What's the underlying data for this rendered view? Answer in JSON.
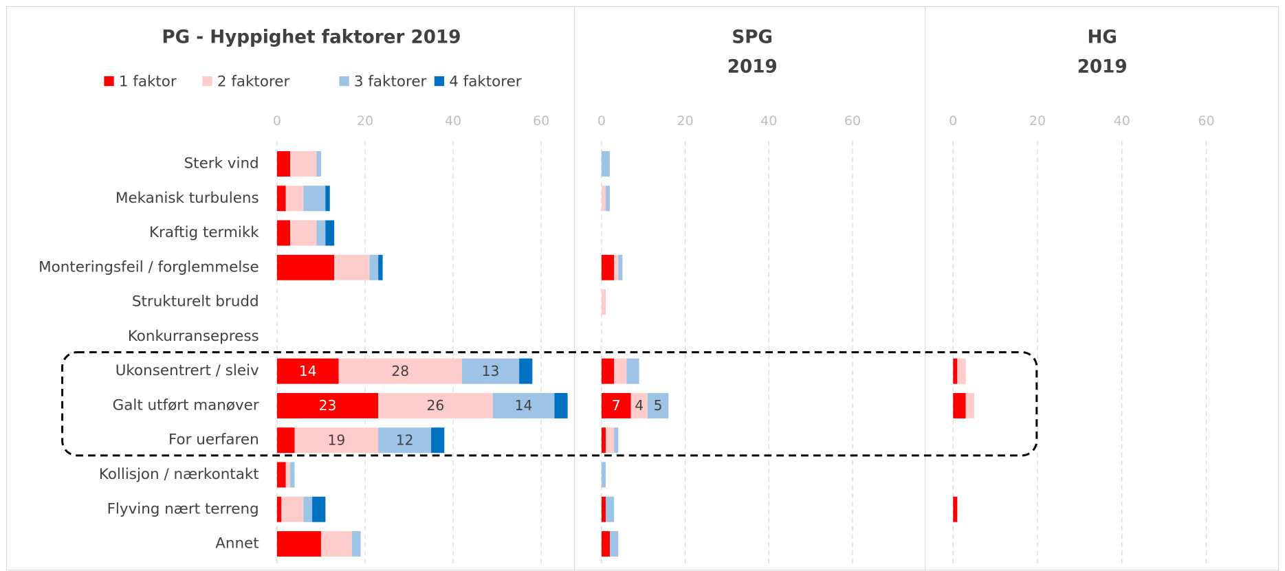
{
  "chart_data": [
    {
      "type": "bar",
      "orientation": "horizontal",
      "stacked": true,
      "title": "PG - Hyppighet faktorer 2019",
      "categories": [
        "Sterk vind",
        "Mekanisk turbulens",
        "Kraftig termikk",
        "Monteringsfeil / forglemmelse",
        "Strukturelt brudd",
        "Konkurransepress",
        "Ukonsentrert / sleiv",
        "Galt utført manøver",
        "For uerfaren",
        "Kollisjon / nærkontakt",
        "Flyving nært terreng",
        "Annet"
      ],
      "series": [
        {
          "name": "1 faktor",
          "color": "#ff0000",
          "values": [
            3,
            2,
            3,
            13,
            0,
            0,
            14,
            23,
            4,
            2,
            1,
            10
          ],
          "value_labels": [
            null,
            null,
            null,
            null,
            null,
            null,
            "14",
            "23",
            null,
            null,
            null,
            null
          ]
        },
        {
          "name": "2 faktorer",
          "color": "#ffcccc",
          "values": [
            6,
            4,
            6,
            8,
            0,
            0,
            28,
            26,
            19,
            1,
            5,
            7
          ],
          "value_labels": [
            null,
            null,
            null,
            null,
            null,
            null,
            "28",
            "26",
            "19",
            null,
            null,
            null
          ]
        },
        {
          "name": "3 faktorer",
          "color": "#9dc3e6",
          "values": [
            1,
            5,
            2,
            2,
            0,
            0,
            13,
            14,
            12,
            1,
            2,
            2
          ],
          "value_labels": [
            null,
            null,
            null,
            null,
            null,
            null,
            "13",
            "14",
            "12",
            null,
            null,
            null
          ]
        },
        {
          "name": "4 faktorer",
          "color": "#0070c0",
          "values": [
            0,
            1,
            2,
            1,
            0,
            0,
            3,
            3,
            3,
            0,
            3,
            0
          ]
        }
      ],
      "xlim": [
        0,
        67
      ],
      "xticks": [
        0,
        20,
        40,
        60
      ],
      "grid": true,
      "legend": "top"
    },
    {
      "type": "bar",
      "orientation": "horizontal",
      "stacked": true,
      "title": "SPG",
      "subtitle": "2019",
      "series": [
        {
          "color": "#ff0000",
          "values": [
            0,
            0,
            0,
            3,
            0,
            0,
            3,
            7,
            1,
            0,
            1,
            2
          ],
          "value_labels": [
            null,
            null,
            null,
            null,
            null,
            null,
            null,
            "7",
            null,
            null,
            null,
            null
          ]
        },
        {
          "color": "#ffcccc",
          "values": [
            0,
            1,
            0,
            1,
            1,
            0,
            3,
            4,
            2,
            0,
            0,
            0
          ],
          "value_labels": [
            null,
            null,
            null,
            null,
            null,
            null,
            null,
            "4",
            null,
            null,
            null,
            null
          ]
        },
        {
          "color": "#9dc3e6",
          "values": [
            2,
            1,
            0,
            1,
            0,
            0,
            3,
            5,
            1,
            1,
            2,
            2
          ],
          "value_labels": [
            null,
            null,
            null,
            null,
            null,
            null,
            null,
            "5",
            null,
            null,
            null,
            null
          ]
        },
        {
          "color": "#0070c0",
          "values": [
            0,
            0,
            0,
            0,
            0,
            0,
            0,
            0,
            0,
            0,
            0,
            0
          ]
        }
      ],
      "xlim": [
        0,
        67
      ],
      "xticks": [
        0,
        20,
        40,
        60
      ],
      "grid": true
    },
    {
      "type": "bar",
      "orientation": "horizontal",
      "stacked": true,
      "title": "HG",
      "subtitle": "2019",
      "series": [
        {
          "color": "#ff0000",
          "values": [
            0,
            0,
            0,
            0,
            0,
            0,
            1,
            3,
            0,
            0,
            1,
            0
          ]
        },
        {
          "color": "#ffcccc",
          "values": [
            0,
            0,
            0,
            0,
            0,
            0,
            2,
            2,
            0,
            0,
            0,
            0
          ]
        },
        {
          "color": "#9dc3e6",
          "values": [
            0,
            0,
            0,
            0,
            0,
            0,
            0,
            0,
            0,
            0,
            0,
            0
          ]
        },
        {
          "color": "#0070c0",
          "values": [
            0,
            0,
            0,
            0,
            0,
            0,
            0,
            0,
            0,
            0,
            0,
            0
          ]
        }
      ],
      "xlim": [
        0,
        67
      ],
      "xticks": [
        0,
        20,
        40,
        60
      ],
      "grid": true
    }
  ]
}
